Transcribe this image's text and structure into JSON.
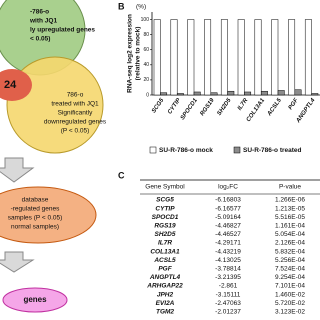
{
  "venn": {
    "green_lines": [
      "-786-o",
      "with JQ1",
      "ly upregulated genes",
      "< 0.05)"
    ],
    "center": "24",
    "yellow_lines": [
      "786-o",
      "treated with JQ1",
      "Significantly",
      "downregulated genes",
      "(P < 0.05)"
    ],
    "db_lines": [
      "database",
      "-regulated genes",
      "samples (P < 0.05)",
      "normal samples)"
    ],
    "result": "genes"
  },
  "chart_data": {
    "type": "bar",
    "panel": "B",
    "unit": "(%)",
    "ylabel": [
      "RNA-seq log2 expression",
      "(relative to mock)"
    ],
    "categories": [
      "SCG5",
      "CYTIP",
      "SPOCD1",
      "RGS19",
      "SH2D5",
      "IL7R",
      "COL13A1",
      "ACSL5",
      "PGF",
      "ANGPTL4"
    ],
    "series": [
      {
        "name": "SU-R-786-o mock",
        "color": "#ffffff",
        "values": [
          100,
          100,
          100,
          100,
          100,
          100,
          100,
          100,
          100,
          100
        ]
      },
      {
        "name": "SU-R-786-o treated",
        "color": "#8c8c8c",
        "values": [
          3,
          2,
          4,
          3,
          5,
          4,
          5,
          6,
          7,
          2
        ]
      }
    ],
    "ylim": [
      0,
      110
    ],
    "yticks": [
      0,
      20,
      40,
      60,
      80,
      100
    ]
  },
  "panel_c": {
    "label": "C",
    "header": [
      "Gene Symbol",
      "log₂FC",
      "P-value"
    ],
    "rows": [
      [
        "SCG5",
        "-6.16803",
        "1.266E-06"
      ],
      [
        "CYTIP",
        "-6.16577",
        "1.213E-05"
      ],
      [
        "SPOCD1",
        "-5.09164",
        "5.516E-05"
      ],
      [
        "RGS19",
        "-4.46827",
        "1.161E-04"
      ],
      [
        "SH2D5",
        "-4.46527",
        "5.054E-04"
      ],
      [
        "IL7R",
        "-4.29171",
        "2.126E-04"
      ],
      [
        "COL13A1",
        "-4.43219",
        "5.832E-04"
      ],
      [
        "ACSL5",
        "-4.13025",
        "5.256E-04"
      ],
      [
        "PGF",
        "-3.78814",
        "7.524E-04"
      ],
      [
        "ANGPTL4",
        "-3.21395",
        "9.254E-04"
      ],
      [
        "ARHGAP22",
        "-2.861",
        "7.101E-04"
      ],
      [
        "JPH2",
        "-3.15111",
        "1.460E-02"
      ],
      [
        "EVI2A",
        "-2.47063",
        "5.720E-02"
      ],
      [
        "TGM2",
        "-2.01237",
        "3.123E-02"
      ]
    ]
  }
}
